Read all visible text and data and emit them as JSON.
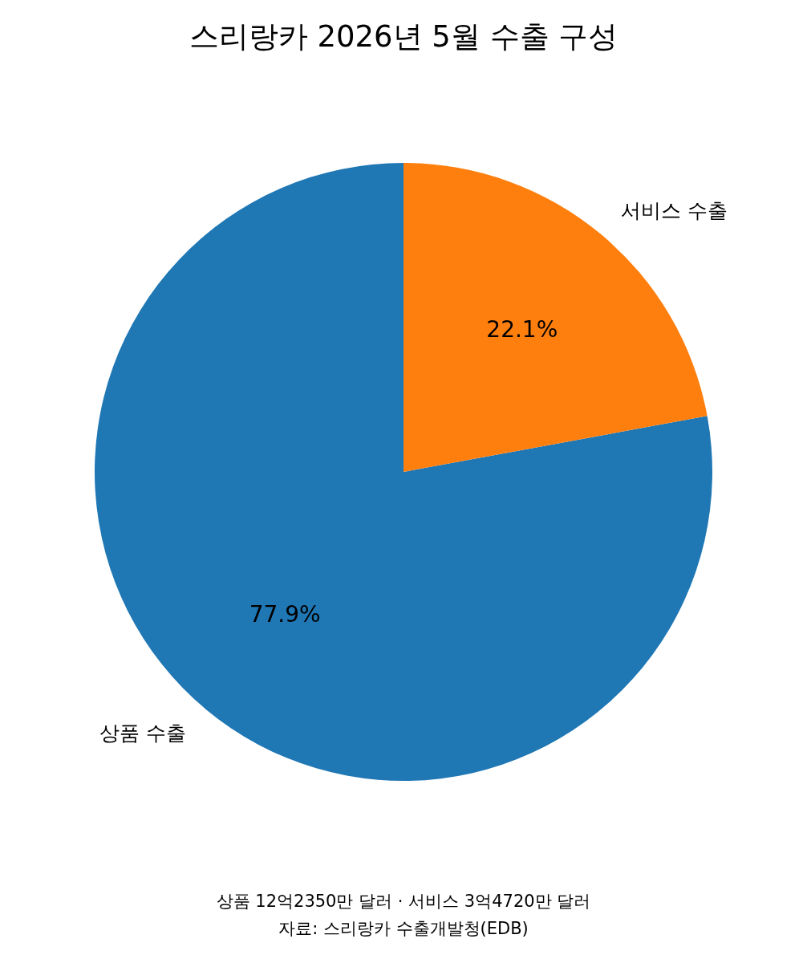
{
  "chart_data": {
    "type": "pie",
    "title": "스리랑카 2026년 5월 수출 구성",
    "categories": [
      "상품 수출",
      "서비스 수출"
    ],
    "values": [
      77.9,
      22.1
    ],
    "value_labels": [
      "77.9%",
      "22.1%"
    ],
    "colors": [
      "#1f77b4",
      "#ff7f0e"
    ],
    "annotations": [
      "상품 12억2350만 달러 · 서비스 3억4720만 달러",
      "자료: 스리랑카 수출개발청(EDB)"
    ]
  }
}
